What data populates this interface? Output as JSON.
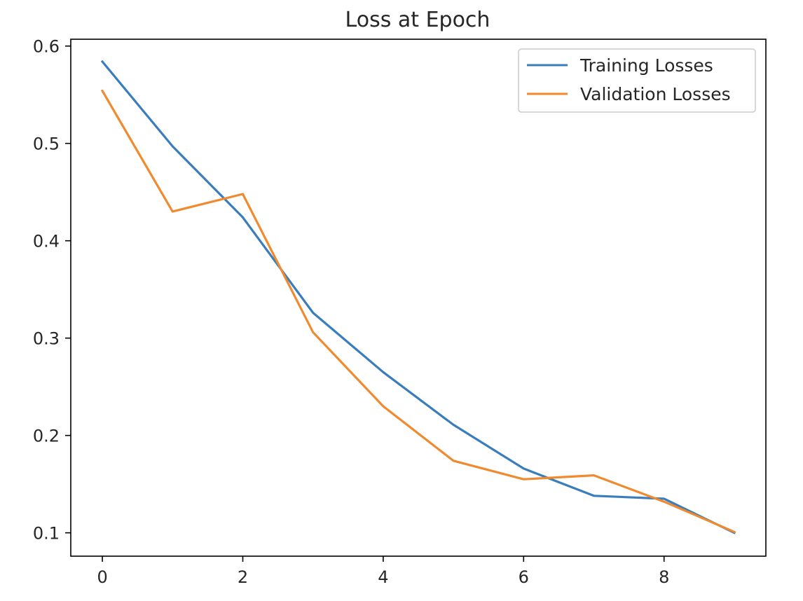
{
  "chart_data": {
    "type": "line",
    "title": "Loss at Epoch",
    "xlabel": "",
    "ylabel": "",
    "x": [
      0,
      1,
      2,
      3,
      4,
      5,
      6,
      7,
      8,
      9
    ],
    "xlim": [
      -0.45,
      9.45
    ],
    "ylim": [
      0.076,
      0.607
    ],
    "xticks": [
      0,
      2,
      4,
      6,
      8
    ],
    "xtick_labels": [
      "0",
      "2",
      "4",
      "6",
      "8"
    ],
    "yticks": [
      0.1,
      0.2,
      0.3,
      0.4,
      0.5,
      0.6
    ],
    "ytick_labels": [
      "0.1",
      "0.2",
      "0.3",
      "0.4",
      "0.5",
      "0.6"
    ],
    "grid": false,
    "legend_position": "top-right",
    "series": [
      {
        "name": "Training Losses",
        "color": "#3a7dbd",
        "values": [
          0.584,
          0.497,
          0.424,
          0.326,
          0.265,
          0.211,
          0.166,
          0.138,
          0.135,
          0.1
        ]
      },
      {
        "name": "Validation Losses",
        "color": "#f08a2f",
        "values": [
          0.554,
          0.43,
          0.448,
          0.306,
          0.23,
          0.174,
          0.155,
          0.159,
          0.132,
          0.101
        ]
      }
    ]
  }
}
